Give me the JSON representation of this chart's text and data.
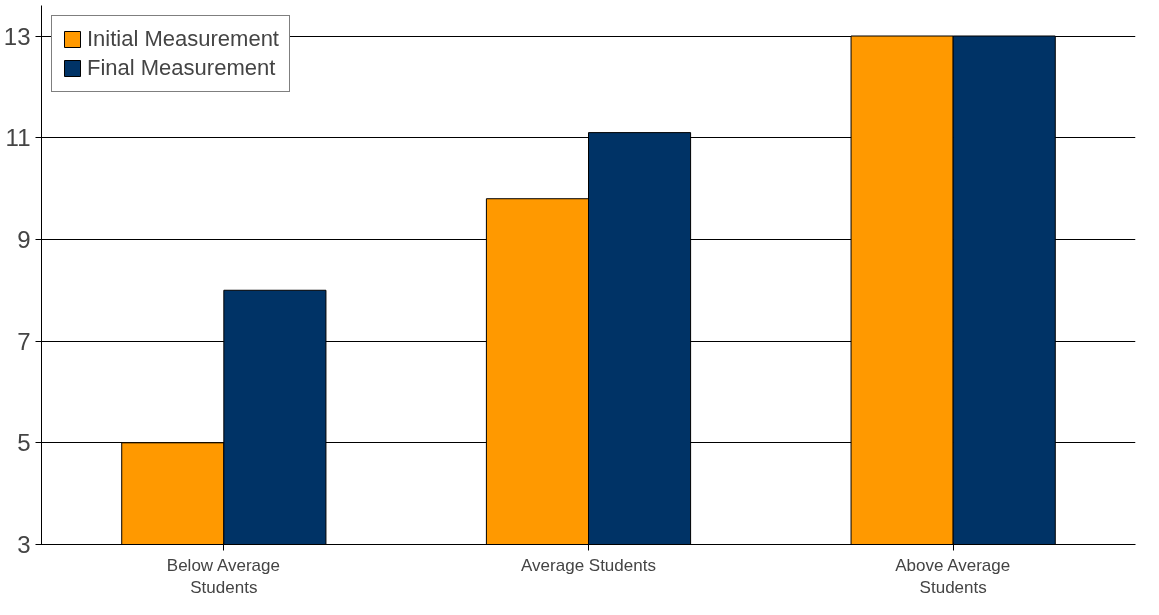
{
  "chart_data": {
    "type": "bar",
    "categories": [
      "Below Average Students",
      "Average Students",
      "Above Average Students"
    ],
    "series": [
      {
        "name": "Initial Measurement",
        "color": "#ff9900",
        "values": [
          5,
          9.8,
          13
        ]
      },
      {
        "name": "Final Measurement",
        "color": "#003366",
        "values": [
          8,
          11.1,
          13
        ]
      }
    ],
    "ylim": [
      3,
      13.6
    ],
    "yticks": [
      3,
      5,
      7,
      9,
      11,
      13
    ],
    "grid": "y",
    "legend": "top left"
  }
}
